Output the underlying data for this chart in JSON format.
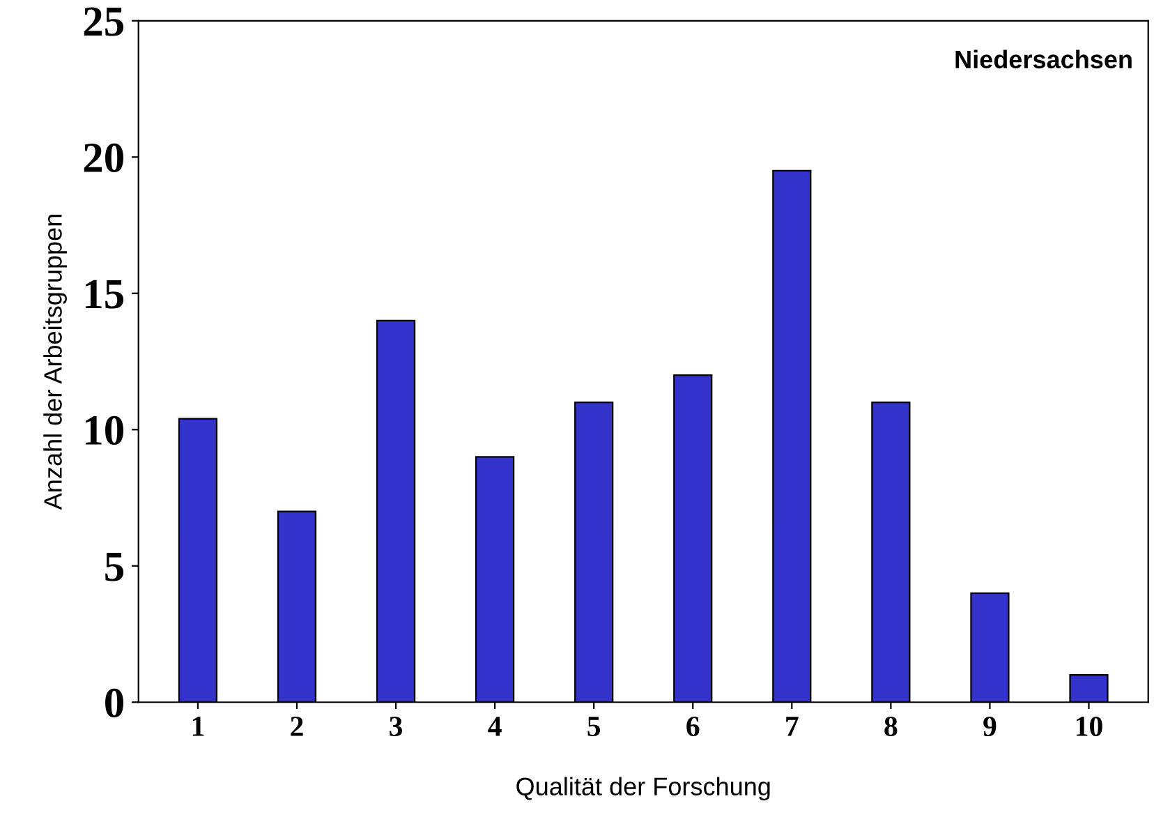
{
  "chart_data": {
    "type": "bar",
    "xlabel": "Qualität der Forschung",
    "ylabel": "Anzahl der Arbeitsgruppen",
    "annotations": [
      "Niedersachsen"
    ],
    "categories": [
      "1",
      "2",
      "3",
      "4",
      "5",
      "6",
      "7",
      "8",
      "9",
      "10"
    ],
    "values": [
      10.4,
      7,
      14,
      9,
      11,
      12,
      19.5,
      11,
      4,
      1
    ],
    "color": "#3333cc",
    "ylim": [
      0,
      25
    ],
    "yticks": [
      0,
      5,
      10,
      15,
      20,
      25
    ],
    "grid": false,
    "legend": false
  }
}
